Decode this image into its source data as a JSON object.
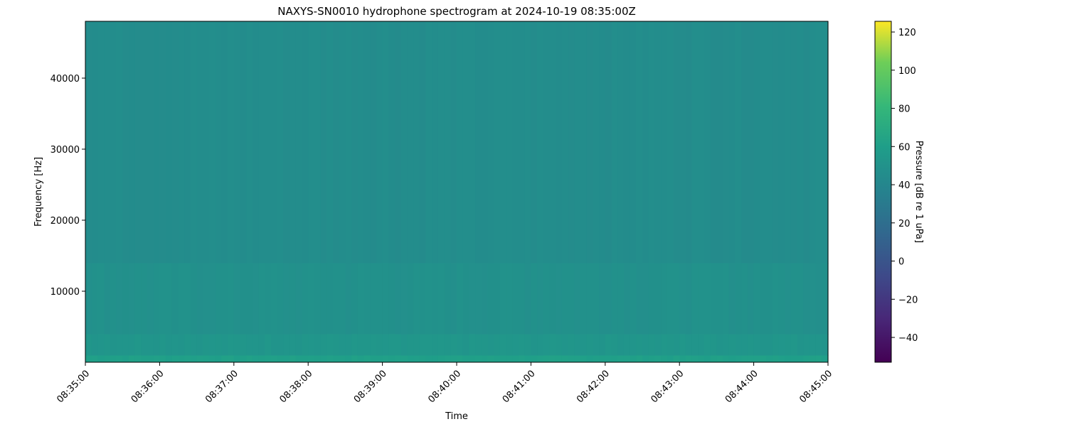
{
  "chart_data": {
    "type": "heatmap",
    "title": "NAXYS-SN0010 hydrophone spectrogram at 2024-10-19 08:35:00Z",
    "xlabel": "Time",
    "ylabel": "Frequency [Hz]",
    "x_ticks": [
      "08:35:00",
      "08:36:00",
      "08:37:00",
      "08:38:00",
      "08:39:00",
      "08:40:00",
      "08:41:00",
      "08:42:00",
      "08:43:00",
      "08:44:00",
      "08:45:00"
    ],
    "y_ticks": [
      10000,
      20000,
      30000,
      40000
    ],
    "ylim": [
      0,
      48000
    ],
    "colorbar": {
      "label": "Pressure [dB re 1 uPa]",
      "range": [
        -53,
        125.6
      ],
      "ticks": [
        -40,
        -20,
        0,
        20,
        40,
        60,
        80,
        100,
        120
      ],
      "colormap": "viridis"
    },
    "bands": [
      {
        "freq_range": [
          0,
          1000
        ],
        "level_db": 60
      },
      {
        "freq_range": [
          1000,
          4000
        ],
        "level_db": 52
      },
      {
        "freq_range": [
          4000,
          14000
        ],
        "level_db": 48
      },
      {
        "freq_range": [
          14000,
          48000
        ],
        "level_db": 45
      }
    ],
    "grid": false
  }
}
